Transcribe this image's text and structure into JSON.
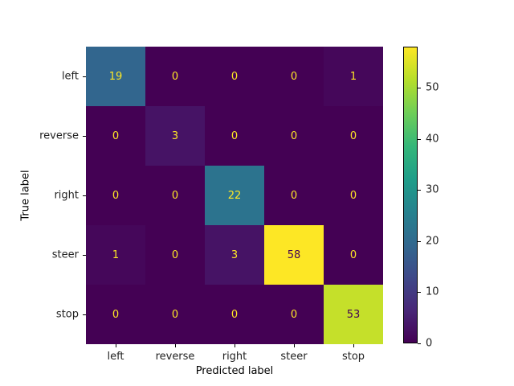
{
  "chart_data": {
    "type": "heatmap",
    "title": "",
    "xlabel": "Predicted label",
    "ylabel": "True label",
    "x_categories": [
      "left",
      "reverse",
      "right",
      "steer",
      "stop"
    ],
    "y_categories": [
      "left",
      "reverse",
      "right",
      "steer",
      "stop"
    ],
    "matrix": [
      [
        19,
        0,
        0,
        0,
        1
      ],
      [
        0,
        3,
        0,
        0,
        0
      ],
      [
        0,
        0,
        22,
        0,
        0
      ],
      [
        1,
        0,
        3,
        58,
        0
      ],
      [
        0,
        0,
        0,
        0,
        53
      ]
    ],
    "colormap": "viridis",
    "vmin": 0,
    "vmax": 58,
    "colorbar_ticks": [
      0,
      10,
      20,
      30,
      40,
      50
    ],
    "text_colors": {
      "low": "#fde725",
      "high": "#440154"
    },
    "grid": false
  }
}
